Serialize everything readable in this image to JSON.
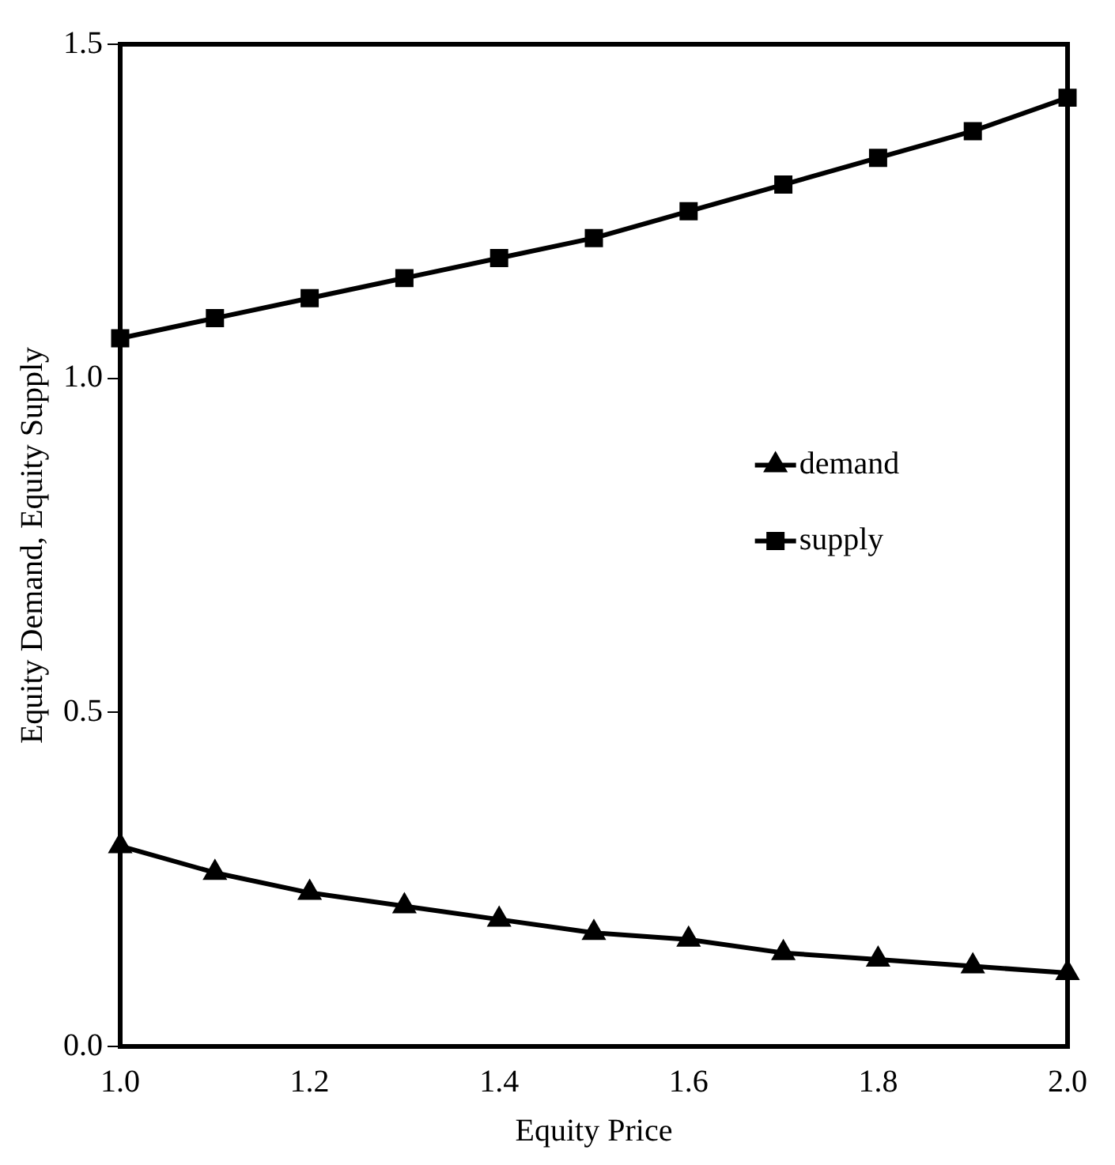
{
  "chart_data": {
    "type": "line",
    "xlabel": "Equity Price",
    "ylabel": "Equity Demand, Equity Supply",
    "x": [
      1.0,
      1.1,
      1.2,
      1.3,
      1.4,
      1.5,
      1.6,
      1.7,
      1.8,
      1.9,
      2.0
    ],
    "series": [
      {
        "name": "demand",
        "color": "#000000",
        "marker": "triangle",
        "values": [
          0.3,
          0.26,
          0.23,
          0.21,
          0.19,
          0.17,
          0.16,
          0.14,
          0.13,
          0.12,
          0.11
        ]
      },
      {
        "name": "supply",
        "color": "#000000",
        "marker": "square",
        "values": [
          1.06,
          1.09,
          1.12,
          1.15,
          1.18,
          1.21,
          1.25,
          1.29,
          1.33,
          1.37,
          1.42
        ]
      }
    ],
    "xlim": [
      1.0,
      2.0
    ],
    "xticks": [
      {
        "value": 1.0,
        "label": "1.0"
      },
      1.2,
      1.4,
      1.6,
      1.8,
      {
        "value": 2.0,
        "label": "2.0"
      }
    ],
    "ylim": [
      0,
      1.5
    ],
    "yticks": [
      {
        "value": 0,
        "label": "0.0"
      },
      0.5,
      {
        "value": 1,
        "label": "1.0"
      },
      1.5
    ],
    "grid": false,
    "legend": "right",
    "line_style": "solid"
  }
}
